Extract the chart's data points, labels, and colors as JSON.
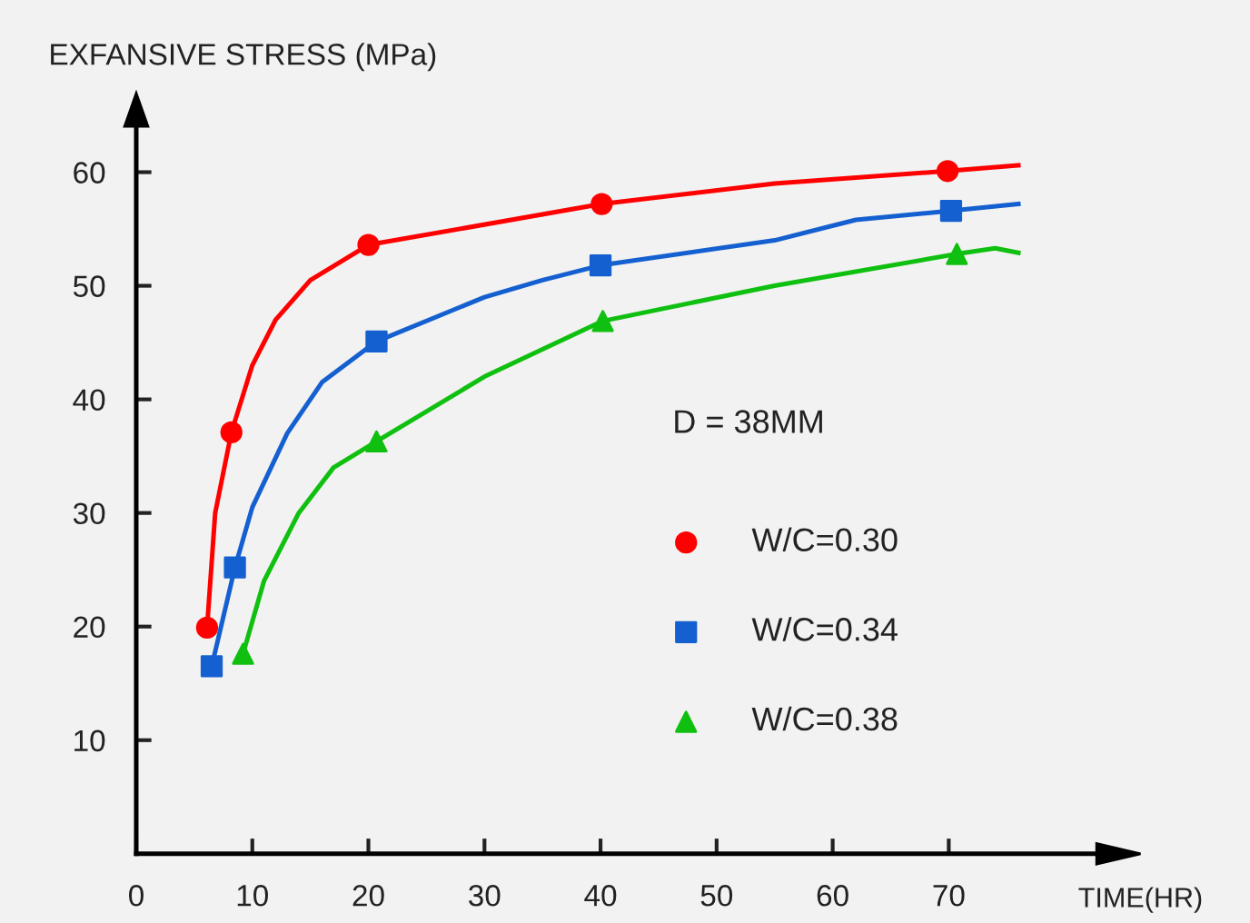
{
  "chart_data": {
    "type": "scatter",
    "xlabel": "TIME(HR)",
    "ylabel": "EXFANSIVE STRESS (MPa)",
    "annotations": [
      "D = 38MM"
    ],
    "xlim": [
      0,
      84
    ],
    "ylim": [
      0,
      65
    ],
    "xticks": [
      0,
      10,
      20,
      30,
      40,
      50,
      60,
      70
    ],
    "yticks": [
      10,
      20,
      30,
      40,
      50,
      60
    ],
    "grid": false,
    "legend": "right",
    "series": [
      {
        "name": "W/C=0.30",
        "color": "#ff0000",
        "marker": "circle",
        "x": [
          6.1,
          8.2,
          20.0,
          40.1,
          69.9
        ],
        "values": [
          19.9,
          37.1,
          53.6,
          57.2,
          60.1
        ]
      },
      {
        "name": "W/C=0.34",
        "color": "#1560d0",
        "marker": "square",
        "x": [
          6.5,
          8.5,
          20.7,
          40.0,
          70.2
        ],
        "values": [
          16.5,
          25.2,
          45.1,
          51.8,
          56.6
        ]
      },
      {
        "name": "W/C=0.38",
        "color": "#10c010",
        "marker": "triangle",
        "x": [
          9.2,
          20.7,
          40.2,
          70.7
        ],
        "values": [
          17.6,
          36.3,
          46.9,
          52.8
        ]
      },
      {
        "type": "line",
        "color": "#ff0000",
        "x": [
          6.1,
          6.8,
          8.2,
          10,
          12,
          15,
          20.0,
          40.1,
          55,
          69.9,
          76
        ],
        "values": [
          19.9,
          30,
          37.1,
          43,
          47,
          50.5,
          53.6,
          57.2,
          59,
          60.1,
          60.6
        ]
      },
      {
        "type": "line",
        "color": "#1560d0",
        "x": [
          6.5,
          8.5,
          10,
          13,
          16,
          20.7,
          30,
          35,
          40.0,
          55,
          62,
          70.2,
          76
        ],
        "values": [
          16.5,
          25.2,
          30.5,
          37,
          41.5,
          45.1,
          49,
          50.5,
          51.8,
          54,
          55.8,
          56.6,
          57.2
        ]
      },
      {
        "type": "line",
        "color": "#10c010",
        "x": [
          9.2,
          11,
          14,
          17,
          20.7,
          30,
          40.2,
          55,
          70.7,
          74,
          76
        ],
        "values": [
          17.6,
          24,
          30,
          34,
          36.3,
          42,
          46.9,
          50,
          52.8,
          53.3,
          52.9
        ]
      }
    ]
  }
}
